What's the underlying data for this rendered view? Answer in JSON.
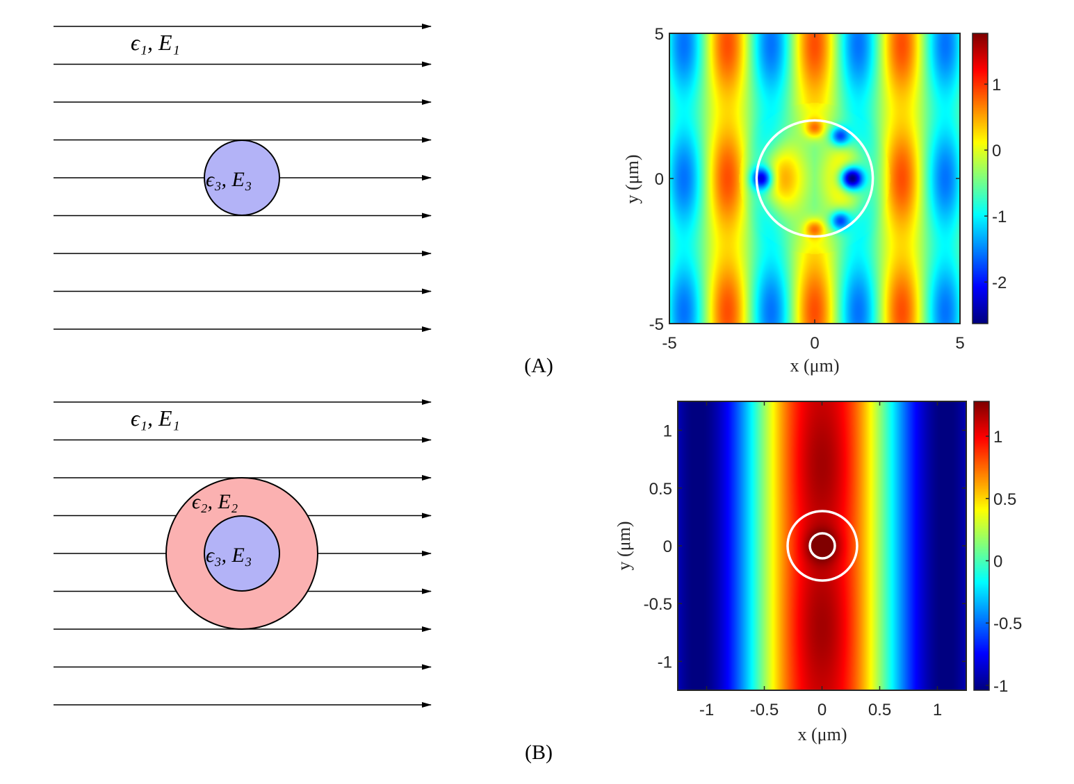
{
  "panel_labels": [
    "(A)",
    "(B)"
  ],
  "diagram_a": {
    "outer_label": "ϵ₁, E₁",
    "core_label": "ϵ₃, E₃",
    "core_fill": "#b3b3f7",
    "field_lines": 9
  },
  "diagram_b": {
    "outer_label": "ϵ₁, E₁",
    "shell_label": "ϵ₂, E₂",
    "core_label": "ϵ₃, E₃",
    "shell_fill": "#fbb1b1",
    "core_fill": "#b3b3f7",
    "field_lines": 9
  },
  "chart_data": [
    {
      "type": "heatmap",
      "colormap": "jet",
      "xlabel": "x (μm)",
      "ylabel": "y (μm)",
      "xlim": [
        -5,
        5
      ],
      "ylim": [
        -5,
        5
      ],
      "xticks": [
        "-5",
        "0",
        "5"
      ],
      "yticks": [
        "-5",
        "0",
        "5"
      ],
      "colorbar": {
        "range": [
          -2.63,
          1.77
        ],
        "ticks": [
          "1",
          "0",
          "-1",
          "-2"
        ]
      },
      "overlay_circles_radius": [
        2
      ],
      "overlay_color": "#ffffff"
    },
    {
      "type": "heatmap",
      "colormap": "jet",
      "xlabel": "x (μm)",
      "ylabel": "y (μm)",
      "xlim": [
        -1.25,
        1.25
      ],
      "ylim": [
        -1.25,
        1.25
      ],
      "xticks": [
        "-1",
        "-0.5",
        "0",
        "0.5",
        "1"
      ],
      "yticks": [
        "1",
        "0.5",
        "0",
        "-0.5",
        "-1"
      ],
      "colorbar": {
        "range": [
          -1.04,
          1.28
        ],
        "ticks": [
          "1",
          "0.5",
          "0",
          "-0.5",
          "-1"
        ]
      },
      "overlay_circles_radius": [
        0.3,
        0.11
      ],
      "overlay_color": "#ffffff"
    }
  ]
}
